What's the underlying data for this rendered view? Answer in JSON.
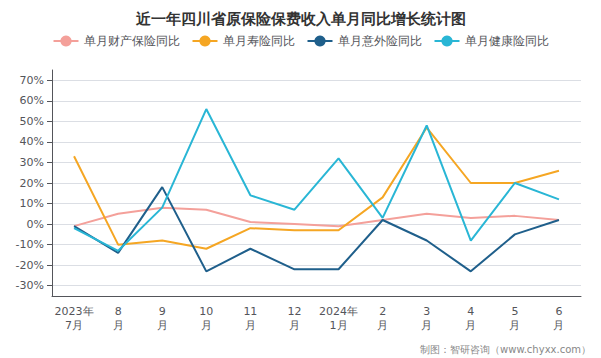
{
  "chart_data": {
    "type": "line",
    "title": "近一年四川省原保险保费收入单月同比增长统计图",
    "categories": [
      "2023年\n7月",
      "8\n月",
      "9\n月",
      "10\n月",
      "11\n月",
      "12\n月",
      "2024年\n1月",
      "2\n月",
      "3\n月",
      "4\n月",
      "5\n月",
      "6\n月"
    ],
    "series": [
      {
        "name": "单月财产保险同比",
        "color": "#F4A09A",
        "values": [
          -1,
          5,
          8,
          7,
          1,
          0,
          -1,
          2,
          5,
          3,
          4,
          2
        ]
      },
      {
        "name": "单月寿险同比",
        "color": "#F5A623",
        "values": [
          33,
          -10,
          -8,
          -12,
          -2,
          -3,
          -3,
          13,
          47,
          20,
          20,
          26
        ]
      },
      {
        "name": "单月意外险同比",
        "color": "#1F5F8B",
        "values": [
          -1,
          -14,
          18,
          -23,
          -12,
          -22,
          -22,
          2,
          -8,
          -23,
          -5,
          2
        ]
      },
      {
        "name": "单月健康险同比",
        "color": "#29B6D5",
        "values": [
          -2,
          -13,
          8,
          56,
          14,
          7,
          32,
          3,
          48,
          -8,
          20,
          12
        ]
      }
    ],
    "ylim": [
      -35,
      75
    ],
    "yticks": [
      {
        "value": -30,
        "label": "-30%"
      },
      {
        "value": -20,
        "label": "-20%"
      },
      {
        "value": -10,
        "label": "-10%"
      },
      {
        "value": 0,
        "label": "0%"
      },
      {
        "value": 10,
        "label": "10%"
      },
      {
        "value": 20,
        "label": "20%"
      },
      {
        "value": 30,
        "label": "30%"
      },
      {
        "value": 40,
        "label": "40%"
      },
      {
        "value": 50,
        "label": "50%"
      },
      {
        "value": 60,
        "label": "60%"
      },
      {
        "value": 70,
        "label": "70%"
      }
    ],
    "grid": true,
    "legend": "top",
    "annotations": [
      "制图：智研咨询（www.chyxx.com）"
    ]
  }
}
